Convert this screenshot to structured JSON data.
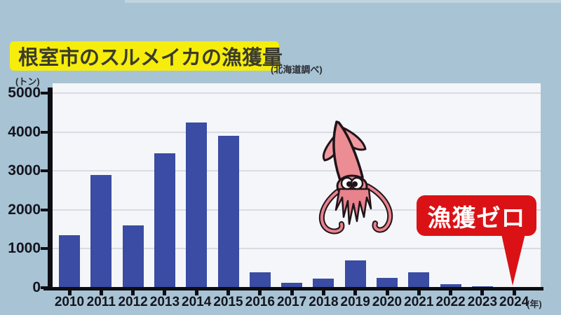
{
  "header": {
    "title": "根室市のスルメイカの漁獲量",
    "source_note": "(北海道調べ)"
  },
  "chart_data": {
    "type": "bar",
    "title": "根室市のスルメイカの漁獲量",
    "unit_label": "(トン)",
    "x_unit_label": "(年)",
    "categories": [
      "2010",
      "2011",
      "2012",
      "2013",
      "2014",
      "2015",
      "2016",
      "2017",
      "2018",
      "2019",
      "2020",
      "2021",
      "2022",
      "2023",
      "2024"
    ],
    "values": [
      1350,
      2900,
      1600,
      3450,
      4250,
      3900,
      400,
      120,
      230,
      700,
      260,
      400,
      90,
      30,
      0
    ],
    "ylabel": "(トン)",
    "xlabel": "(年)",
    "ylim": [
      0,
      5000
    ],
    "y_ticks": [
      0,
      1000,
      2000,
      3000,
      4000,
      5000
    ],
    "grid": true,
    "legend": "none",
    "bar_color": "#3a4ca3"
  },
  "annotation": {
    "label": "漁獲ゼロ",
    "target_year": "2024",
    "color": "#da1216"
  },
  "icons": {
    "squid_illustration": "squid-icon"
  },
  "colors": {
    "background": "#a8c4d4",
    "plot_background": "#f4f6f9",
    "bar": "#3a4ca3",
    "title_highlight": "#f6ed0c",
    "annotation_red": "#da1216",
    "axis": "#0d0d14"
  }
}
